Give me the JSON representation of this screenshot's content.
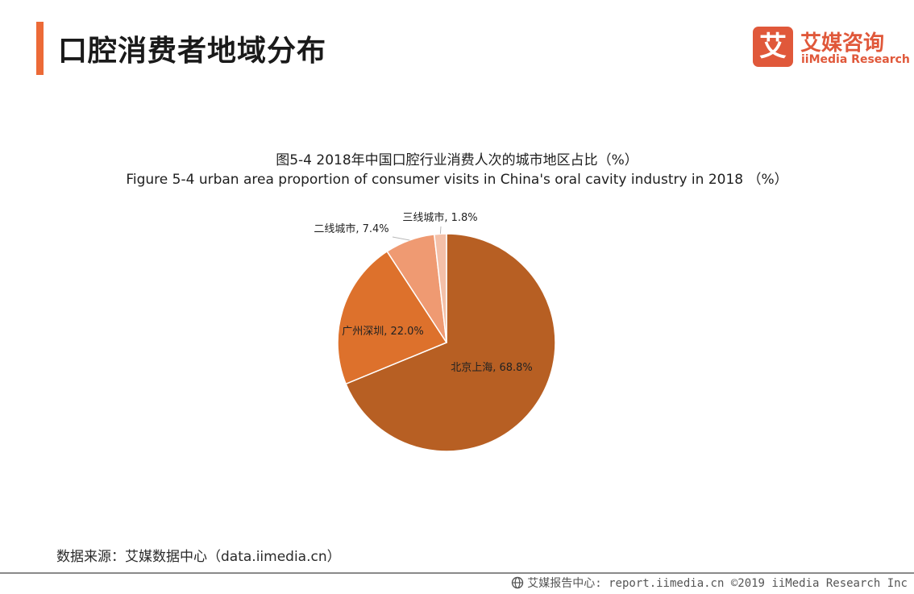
{
  "header": {
    "title": "口腔消费者地域分布",
    "accent_color": "#ec6a37"
  },
  "logo": {
    "mark": "艾",
    "cn": "艾媒咨询",
    "en": "iiMedia Research",
    "color": "#e0583a"
  },
  "chart_data": {
    "type": "pie",
    "title_cn": "图5-4 2018年中国口腔行业消费人次的城市地区占比（%）",
    "title_en": "Figure 5-4 urban area proportion of consumer visits in China's oral cavity industry in 2018 （%）",
    "slices": [
      {
        "label": "北京上海",
        "value": 68.8,
        "value_label": "68.8%",
        "color": "#b75f23"
      },
      {
        "label": "广州深圳",
        "value": 22.0,
        "value_label": "22.0%",
        "color": "#dd712c"
      },
      {
        "label": "二线城市",
        "value": 7.4,
        "value_label": "7.4%",
        "color": "#ef9a72"
      },
      {
        "label": "三线城市",
        "value": 1.8,
        "value_label": "1.8%",
        "color": "#f4c0a8"
      }
    ]
  },
  "source": {
    "text": "数据来源：艾媒数据中心（data.iimedia.cn）"
  },
  "footer": {
    "text": "艾媒报告中心: report.iimedia.cn  ©2019  iiMedia Research  Inc"
  }
}
